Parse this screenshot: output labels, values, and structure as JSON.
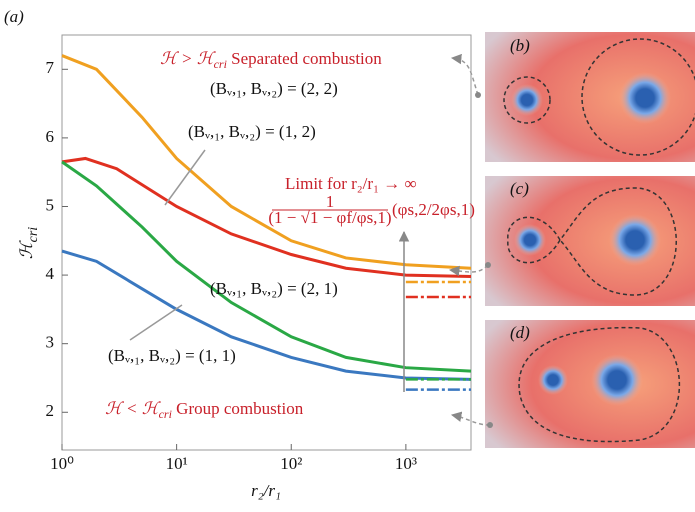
{
  "chart_data": {
    "type": "line",
    "panel_label": "(a)",
    "x_label": "r₂/r₁",
    "y_label": {
      "main": "ℋ",
      "sub": "cri"
    },
    "log_x": true,
    "xlim": [
      1,
      3700
    ],
    "ylim": [
      1.45,
      7.5
    ],
    "xticks": [
      {
        "value": 1,
        "label": "10⁰"
      },
      {
        "value": 10,
        "label": "10¹"
      },
      {
        "value": 100,
        "label": "10²"
      },
      {
        "value": 1000,
        "label": "10³"
      }
    ],
    "yticks": [
      2,
      3,
      4,
      5,
      6,
      7
    ],
    "series": [
      {
        "name": "(Bᵥ,₁, Bᵥ,₂) = (2, 2)",
        "color": "#f0a020",
        "x": [
          1,
          2,
          5,
          10,
          30,
          100,
          300,
          1000,
          3700
        ],
        "values": [
          7.2,
          7.0,
          6.3,
          5.7,
          5.0,
          4.5,
          4.25,
          4.15,
          4.1
        ]
      },
      {
        "name": "(Bᵥ,₁, Bᵥ,₂) = (1, 2)",
        "color": "#e03020",
        "x": [
          1,
          1.6,
          3,
          10,
          30,
          100,
          300,
          1000,
          3700
        ],
        "values": [
          5.65,
          5.7,
          5.55,
          5.0,
          4.6,
          4.3,
          4.1,
          4.0,
          3.98
        ]
      },
      {
        "name": "(Bᵥ,₁, Bᵥ,₂) = (2, 1)",
        "color": "#2aa845",
        "x": [
          1,
          2,
          5,
          10,
          30,
          100,
          300,
          1000,
          3700
        ],
        "values": [
          5.65,
          5.3,
          4.7,
          4.2,
          3.6,
          3.1,
          2.8,
          2.65,
          2.6
        ]
      },
      {
        "name": "(Bᵥ,₁, Bᵥ,₂) = (1, 1)",
        "color": "#3a78c0",
        "x": [
          1,
          2,
          5,
          10,
          30,
          100,
          300,
          1000,
          3700
        ],
        "values": [
          4.35,
          4.2,
          3.8,
          3.5,
          3.1,
          2.8,
          2.6,
          2.5,
          2.48
        ]
      },
      {
        "color": "#f0a020",
        "dashed": true,
        "x": [
          1000,
          3700
        ],
        "values": [
          3.9,
          3.9
        ]
      },
      {
        "color": "#e03020",
        "dashed": true,
        "x": [
          1000,
          3700
        ],
        "values": [
          3.68,
          3.68
        ]
      },
      {
        "color": "#2aa845",
        "dashed": true,
        "x": [
          1000,
          3700
        ],
        "values": [
          2.48,
          2.48
        ]
      },
      {
        "color": "#3a78c0",
        "dashed": true,
        "x": [
          1000,
          3700
        ],
        "values": [
          2.33,
          2.33
        ]
      }
    ],
    "annotations": {
      "separated": {
        "math": "ℋ > ℋ",
        "sub": "cri",
        "text": " Separated combustion"
      },
      "group": {
        "math": "ℋ < ℋ",
        "sub": "cri",
        "text": " Group combustion"
      },
      "limit": "Limit for r₂/r₁ → ∞",
      "formula_numerator": "1",
      "formula_denominator": "(1 − √1 − φf/φs,1)",
      "formula_factor": "(φs,2/2φs,1)"
    },
    "panels": [
      "(b)",
      "(c)",
      "(d)"
    ]
  }
}
